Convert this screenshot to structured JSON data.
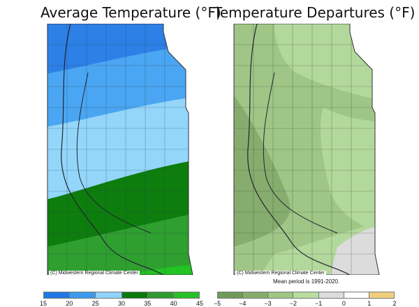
{
  "titles": {
    "left": "Average Temperature (°F)",
    "right": "Temperature Departures (°F)"
  },
  "credits": {
    "left": "(C) Midwestern Regional Climate Center",
    "right": "(C) Midwestern Regional Climate Center"
  },
  "mean_note": "Mean period is 1991-2020.",
  "legend_left": {
    "ticks": [
      "15",
      "20",
      "25",
      "30",
      "35",
      "40",
      "45"
    ],
    "colors": [
      "#1e78e6",
      "#3c9bef",
      "#8fd2fb",
      "#0b7a0b",
      "#2f9a2f",
      "#26c026"
    ]
  },
  "legend_right": {
    "ticks": [
      "−5",
      "−4",
      "−3",
      "−2",
      "−1",
      "0",
      "1",
      "2"
    ],
    "colors": [
      "#6f9a5b",
      "#85ad6b",
      "#9ec682",
      "#b8de9f",
      "#dcdcdc",
      "#ffffff",
      "#f0cf7c"
    ]
  },
  "map_colors": {
    "avg_blue_dark": "#2d80e6",
    "avg_blue_mid": "#4aa6f2",
    "avg_blue_light": "#94d6fa",
    "avg_green_dark": "#0d7d0d",
    "avg_green_mid": "#2f9f2f",
    "avg_green_bright": "#22c322",
    "dep_green_light": "#b3d89c",
    "dep_green_mid": "#9fc686",
    "dep_green_dark": "#86ad6d",
    "dep_gray": "#dcdcdc"
  }
}
